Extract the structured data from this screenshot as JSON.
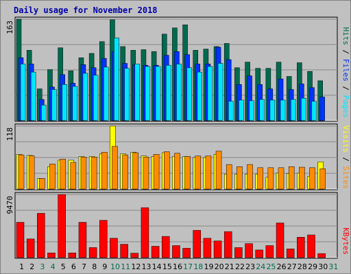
{
  "chart_data": {
    "type": "bar",
    "title": "Daily usage for November 2018",
    "x": [
      "1",
      "2",
      "3",
      "4",
      "5",
      "6",
      "7",
      "8",
      "9",
      "10",
      "11",
      "12",
      "13",
      "14",
      "15",
      "16",
      "17",
      "18",
      "19",
      "20",
      "21",
      "22",
      "23",
      "24",
      "25",
      "26",
      "27",
      "28",
      "29",
      "30",
      "31"
    ],
    "weekend_days": [
      "3",
      "4",
      "10",
      "11",
      "17",
      "18",
      "24",
      "25",
      "31"
    ],
    "colors": {
      "hits": "#006a4e",
      "files": "#0033ff",
      "pages": "#00e5ff",
      "visits": "#ffff00",
      "sites": "#ff8c00",
      "kbytes": "#ff0000",
      "weekday_label": "#000000",
      "weekend_label": "#006a4e",
      "background": "#c0c0c0",
      "frame": "#a0a0a0"
    },
    "panels": [
      {
        "name": "pages-files-hits",
        "y_max_label": "163",
        "y_max": 163,
        "legend": [
          "Pages",
          "Files",
          "Hits"
        ],
        "series": [
          {
            "name": "Hits",
            "values": [
              163,
              113,
              51,
              82,
              117,
              80,
              101,
              108,
              127,
              162,
              119,
              113,
              114,
              111,
              139,
              149,
              154,
              113,
              115,
              119,
              124,
              85,
              94,
              84,
              84,
              94,
              71,
              93,
              79,
              64,
              0
            ]
          },
          {
            "name": "Files",
            "values": [
              101,
              91,
              34,
              54,
              74,
              60,
              90,
              85,
              100,
              111,
              92,
              90,
              89,
              89,
              105,
              111,
              106,
              91,
              91,
              118,
              98,
              58,
              72,
              58,
              51,
              67,
              50,
              59,
              53,
              38,
              0
            ]
          },
          {
            "name": "Pages",
            "values": [
              91,
              78,
              25,
              50,
              58,
              55,
              76,
              73,
              86,
              133,
              84,
              91,
              87,
              87,
              89,
              91,
              85,
              78,
              87,
              92,
              31,
              33,
              32,
              34,
              33,
              33,
              34,
              36,
              31,
              0,
              0
            ]
          }
        ]
      },
      {
        "name": "visits-sites",
        "y_max_label": "118",
        "y_max": 118,
        "legend": [
          "Sites",
          "Visits"
        ],
        "series": [
          {
            "name": "Visits",
            "values": [
              65,
              63,
              20,
              42,
              54,
              54,
              61,
              61,
              66,
              118,
              66,
              69,
              62,
              61,
              68,
              61,
              61,
              59,
              59,
              65,
              28,
              28,
              28,
              28,
              22,
              30,
              29,
              30,
              24,
              51,
              0
            ]
          },
          {
            "name": "Sites",
            "values": [
              64,
              62,
              20,
              47,
              56,
              50,
              60,
              60,
              69,
              80,
              64,
              68,
              60,
              65,
              70,
              67,
              61,
              62,
              62,
              71,
              46,
              42,
              46,
              40,
              40,
              40,
              42,
              41,
              40,
              38,
              0
            ]
          }
        ]
      },
      {
        "name": "kbytes",
        "y_max_label": "9470",
        "y_max": 9470,
        "legend": [
          "KBytes"
        ],
        "series": [
          {
            "name": "KBytes",
            "values": [
              5300,
              2800,
              6650,
              700,
              9470,
              700,
              5300,
              1500,
              5600,
              2900,
              2000,
              660,
              7500,
              1700,
              3180,
              1800,
              1400,
              4100,
              2900,
              2500,
              3900,
              1500,
              2100,
              1140,
              1800,
              5200,
              1300,
              3060,
              3400,
              600,
              0
            ]
          }
        ]
      }
    ]
  }
}
